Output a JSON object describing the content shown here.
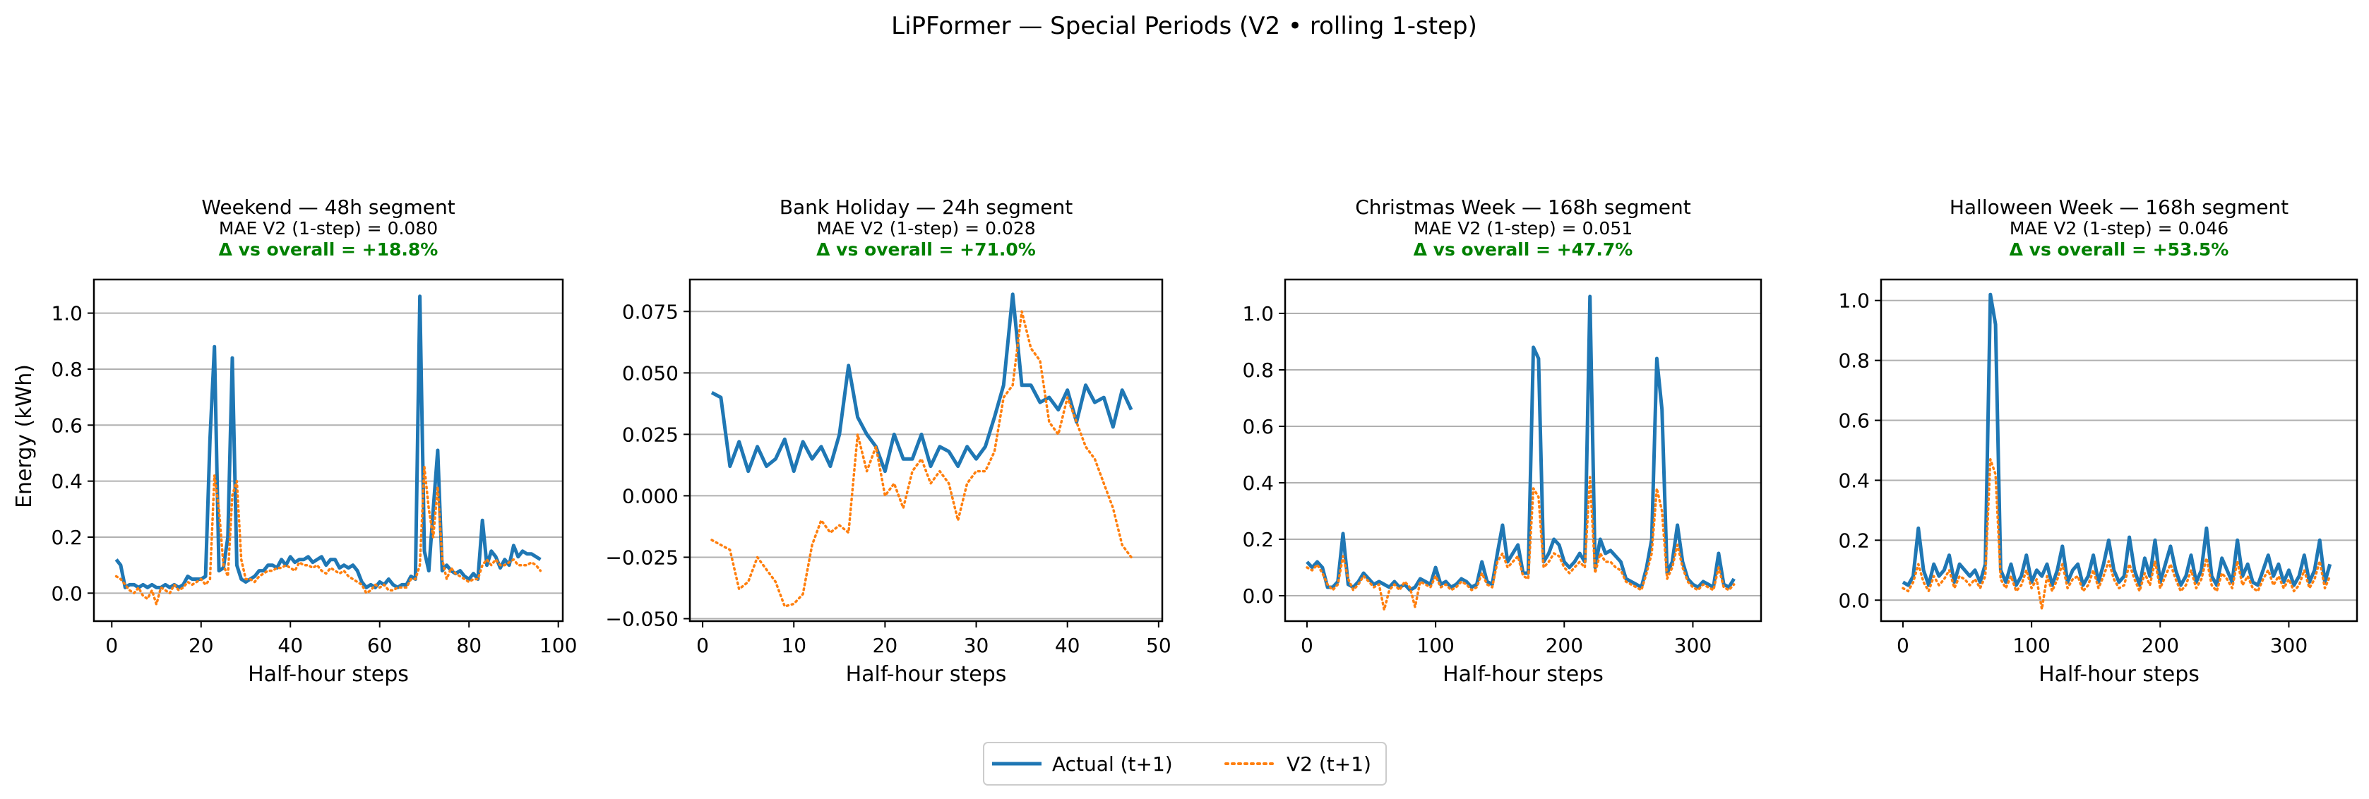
{
  "figure": {
    "suptitle": "LiPFormer — Special Periods (V2 • rolling 1-step)",
    "ylabel": "Energy (kWh)",
    "legend": [
      {
        "label": "Actual (t+1)",
        "color": "#1f77b4",
        "style": "solid"
      },
      {
        "label": "V2 (t+1)",
        "color": "#ff7f0e",
        "style": "dotted"
      }
    ],
    "delta_color": "#008000"
  },
  "chart_data": [
    {
      "type": "line",
      "title": "Weekend — 48h segment",
      "subtitle": "MAE V2 (1-step) = 0.080",
      "delta": "Δ vs overall = +18.8%",
      "xlabel": "Half-hour steps",
      "ylabel": "Energy (kWh)",
      "xlim": [
        -4,
        101
      ],
      "ylim": [
        -0.1,
        1.12
      ],
      "xticks": [
        0,
        20,
        40,
        60,
        80,
        100
      ],
      "yticks": [
        0.0,
        0.2,
        0.4,
        0.6,
        0.8,
        1.0
      ],
      "ytick_labels": [
        "0.0",
        "0.2",
        "0.4",
        "0.6",
        "0.8",
        "1.0"
      ],
      "grid": "y",
      "series": [
        {
          "name": "Actual (t+1)",
          "x_start": 1,
          "x_step": 1,
          "values": [
            0.12,
            0.1,
            0.02,
            0.03,
            0.03,
            0.02,
            0.03,
            0.02,
            0.03,
            0.02,
            0.02,
            0.03,
            0.02,
            0.03,
            0.02,
            0.03,
            0.06,
            0.05,
            0.05,
            0.05,
            0.06,
            0.55,
            0.88,
            0.08,
            0.09,
            0.2,
            0.84,
            0.1,
            0.05,
            0.04,
            0.05,
            0.06,
            0.08,
            0.08,
            0.1,
            0.1,
            0.09,
            0.12,
            0.1,
            0.13,
            0.11,
            0.12,
            0.12,
            0.13,
            0.11,
            0.12,
            0.13,
            0.1,
            0.12,
            0.12,
            0.09,
            0.1,
            0.09,
            0.1,
            0.08,
            0.04,
            0.02,
            0.03,
            0.02,
            0.04,
            0.03,
            0.05,
            0.03,
            0.02,
            0.03,
            0.03,
            0.06,
            0.05,
            1.06,
            0.15,
            0.08,
            0.3,
            0.51,
            0.08,
            0.1,
            0.08,
            0.07,
            0.08,
            0.06,
            0.05,
            0.07,
            0.05,
            0.26,
            0.1,
            0.15,
            0.13,
            0.09,
            0.12,
            0.1,
            0.17,
            0.13,
            0.15,
            0.14,
            0.14,
            0.13,
            0.12
          ],
          "color": "#1f77b4"
        },
        {
          "name": "V2 (t+1)",
          "x_start": 1,
          "x_step": 1,
          "values": [
            0.06,
            0.05,
            0.03,
            0.01,
            0.0,
            0.02,
            -0.01,
            -0.02,
            0.01,
            -0.04,
            0.02,
            0.01,
            0.0,
            0.03,
            0.01,
            0.02,
            0.04,
            0.03,
            0.04,
            0.05,
            0.03,
            0.05,
            0.42,
            0.3,
            0.1,
            0.06,
            0.35,
            0.4,
            0.12,
            0.05,
            0.05,
            0.04,
            0.06,
            0.07,
            0.08,
            0.08,
            0.09,
            0.09,
            0.1,
            0.09,
            0.08,
            0.11,
            0.1,
            0.1,
            0.09,
            0.1,
            0.08,
            0.07,
            0.09,
            0.08,
            0.07,
            0.08,
            0.06,
            0.05,
            0.04,
            0.03,
            0.0,
            0.01,
            0.03,
            0.02,
            0.03,
            0.01,
            0.01,
            0.02,
            0.02,
            0.02,
            0.05,
            0.05,
            0.1,
            0.45,
            0.3,
            0.2,
            0.38,
            0.12,
            0.05,
            0.09,
            0.07,
            0.06,
            0.05,
            0.04,
            0.05,
            0.05,
            0.1,
            0.12,
            0.1,
            0.12,
            0.1,
            0.1,
            0.11,
            0.12,
            0.1,
            0.1,
            0.1,
            0.11,
            0.1,
            0.08
          ],
          "color": "#ff7f0e"
        }
      ]
    },
    {
      "type": "line",
      "title": "Bank Holiday — 24h segment",
      "subtitle": "MAE V2 (1-step) = 0.028",
      "delta": "Δ vs overall = +71.0%",
      "xlabel": "Half-hour steps",
      "ylabel": "",
      "xlim": [
        -1.4,
        50.4
      ],
      "ylim": [
        -0.051,
        0.088
      ],
      "xticks": [
        0,
        10,
        20,
        30,
        40,
        50
      ],
      "yticks": [
        -0.05,
        -0.025,
        0.0,
        0.025,
        0.05,
        0.075
      ],
      "ytick_labels": [
        "−0.050",
        "−0.025",
        "0.000",
        "0.025",
        "0.050",
        "0.075"
      ],
      "grid": "y",
      "series": [
        {
          "name": "Actual (t+1)",
          "x_start": 1,
          "x_step": 1,
          "values": [
            0.042,
            0.04,
            0.012,
            0.022,
            0.01,
            0.02,
            0.012,
            0.015,
            0.023,
            0.01,
            0.022,
            0.015,
            0.02,
            0.012,
            0.025,
            0.053,
            0.032,
            0.025,
            0.02,
            0.01,
            0.025,
            0.015,
            0.015,
            0.025,
            0.012,
            0.02,
            0.018,
            0.012,
            0.02,
            0.015,
            0.02,
            0.032,
            0.045,
            0.082,
            0.045,
            0.045,
            0.038,
            0.04,
            0.035,
            0.043,
            0.03,
            0.045,
            0.038,
            0.04,
            0.028,
            0.043,
            0.035
          ],
          "color": "#1f77b4"
        },
        {
          "name": "V2 (t+1)",
          "x_start": 1,
          "x_step": 1,
          "values": [
            -0.018,
            -0.02,
            -0.022,
            -0.038,
            -0.035,
            -0.025,
            -0.03,
            -0.035,
            -0.045,
            -0.044,
            -0.04,
            -0.02,
            -0.01,
            -0.015,
            -0.012,
            -0.015,
            0.025,
            0.01,
            0.02,
            0.0,
            0.005,
            -0.005,
            0.01,
            0.015,
            0.005,
            0.01,
            0.005,
            -0.01,
            0.005,
            0.01,
            0.01,
            0.018,
            0.04,
            0.045,
            0.075,
            0.06,
            0.055,
            0.03,
            0.025,
            0.04,
            0.03,
            0.02,
            0.015,
            0.005,
            -0.005,
            -0.02,
            -0.025
          ],
          "color": "#ff7f0e"
        }
      ]
    },
    {
      "type": "line",
      "title": "Christmas Week — 168h segment",
      "subtitle": "MAE V2 (1-step) = 0.051",
      "delta": "Δ vs overall = +47.7%",
      "xlabel": "Half-hour steps",
      "ylabel": "",
      "xlim": [
        -17,
        353
      ],
      "ylim": [
        -0.09,
        1.12
      ],
      "xticks": [
        0,
        100,
        200,
        300
      ],
      "yticks": [
        0.0,
        0.2,
        0.4,
        0.6,
        0.8,
        1.0
      ],
      "ytick_labels": [
        "0.0",
        "0.2",
        "0.4",
        "0.6",
        "0.8",
        "1.0"
      ],
      "grid": "y",
      "series": [
        {
          "name": "Actual (t+1)",
          "x_start": 0,
          "x_step": 4,
          "values": [
            0.12,
            0.1,
            0.12,
            0.1,
            0.03,
            0.03,
            0.05,
            0.22,
            0.04,
            0.03,
            0.05,
            0.08,
            0.06,
            0.04,
            0.05,
            0.04,
            0.03,
            0.05,
            0.03,
            0.04,
            0.02,
            0.03,
            0.06,
            0.05,
            0.04,
            0.1,
            0.04,
            0.05,
            0.03,
            0.04,
            0.06,
            0.05,
            0.03,
            0.04,
            0.12,
            0.05,
            0.04,
            0.15,
            0.25,
            0.12,
            0.15,
            0.18,
            0.08,
            0.08,
            0.88,
            0.84,
            0.12,
            0.15,
            0.2,
            0.18,
            0.12,
            0.1,
            0.12,
            0.15,
            0.12,
            1.06,
            0.1,
            0.2,
            0.15,
            0.16,
            0.14,
            0.12,
            0.06,
            0.05,
            0.04,
            0.03,
            0.1,
            0.2,
            0.84,
            0.66,
            0.08,
            0.12,
            0.25,
            0.12,
            0.06,
            0.04,
            0.03,
            0.05,
            0.04,
            0.03,
            0.15,
            0.04,
            0.03,
            0.06
          ],
          "color": "#1f77b4"
        },
        {
          "name": "V2 (t+1)",
          "x_start": 0,
          "x_step": 4,
          "values": [
            0.1,
            0.09,
            0.11,
            0.08,
            0.04,
            0.02,
            0.04,
            0.14,
            0.06,
            0.02,
            0.04,
            0.07,
            0.05,
            0.03,
            0.04,
            -0.05,
            0.02,
            0.04,
            0.02,
            0.05,
            0.03,
            -0.04,
            0.05,
            0.04,
            0.03,
            0.07,
            0.03,
            0.04,
            0.02,
            0.03,
            0.05,
            0.04,
            0.02,
            0.03,
            0.08,
            0.04,
            0.03,
            0.12,
            0.15,
            0.1,
            0.12,
            0.14,
            0.07,
            0.06,
            0.38,
            0.35,
            0.1,
            0.12,
            0.15,
            0.14,
            0.1,
            0.08,
            0.1,
            0.12,
            0.1,
            0.42,
            0.08,
            0.15,
            0.12,
            0.12,
            0.1,
            0.09,
            0.05,
            0.04,
            0.03,
            0.02,
            0.08,
            0.15,
            0.38,
            0.3,
            0.06,
            0.1,
            0.18,
            0.1,
            0.05,
            0.03,
            0.02,
            0.04,
            0.03,
            0.02,
            0.1,
            0.03,
            0.02,
            0.04
          ],
          "color": "#ff7f0e"
        }
      ]
    },
    {
      "type": "line",
      "title": "Halloween Week — 168h segment",
      "subtitle": "MAE V2 (1-step) = 0.046",
      "delta": "Δ vs overall = +53.5%",
      "xlabel": "Half-hour steps",
      "ylabel": "",
      "xlim": [
        -17,
        353
      ],
      "ylim": [
        -0.07,
        1.07
      ],
      "xticks": [
        0,
        100,
        200,
        300
      ],
      "yticks": [
        0.0,
        0.2,
        0.4,
        0.6,
        0.8,
        1.0
      ],
      "ytick_labels": [
        "0.0",
        "0.2",
        "0.4",
        "0.6",
        "0.8",
        "1.0"
      ],
      "grid": "y",
      "series": [
        {
          "name": "Actual (t+1)",
          "x_start": 0,
          "x_step": 4,
          "values": [
            0.06,
            0.05,
            0.08,
            0.24,
            0.1,
            0.05,
            0.12,
            0.08,
            0.1,
            0.15,
            0.06,
            0.12,
            0.1,
            0.08,
            0.1,
            0.06,
            0.12,
            1.02,
            0.92,
            0.1,
            0.06,
            0.12,
            0.05,
            0.08,
            0.15,
            0.06,
            0.1,
            0.08,
            0.12,
            0.05,
            0.1,
            0.18,
            0.06,
            0.1,
            0.12,
            0.05,
            0.08,
            0.15,
            0.06,
            0.12,
            0.2,
            0.1,
            0.06,
            0.08,
            0.21,
            0.1,
            0.05,
            0.14,
            0.08,
            0.2,
            0.06,
            0.12,
            0.18,
            0.1,
            0.05,
            0.08,
            0.15,
            0.06,
            0.1,
            0.24,
            0.08,
            0.05,
            0.14,
            0.1,
            0.06,
            0.2,
            0.08,
            0.12,
            0.06,
            0.05,
            0.1,
            0.15,
            0.08,
            0.12,
            0.06,
            0.1,
            0.05,
            0.08,
            0.15,
            0.06,
            0.1,
            0.2,
            0.06,
            0.12
          ],
          "color": "#1f77b4"
        },
        {
          "name": "V2 (t+1)",
          "x_start": 0,
          "x_step": 4,
          "values": [
            0.04,
            0.03,
            0.06,
            0.12,
            0.06,
            0.03,
            0.08,
            0.05,
            0.07,
            0.1,
            0.04,
            0.08,
            0.07,
            0.05,
            0.07,
            0.04,
            0.08,
            0.47,
            0.42,
            0.07,
            0.04,
            0.08,
            0.03,
            0.05,
            0.1,
            0.04,
            0.07,
            -0.03,
            0.08,
            0.03,
            0.07,
            0.12,
            0.04,
            0.07,
            0.08,
            0.03,
            0.05,
            0.1,
            0.04,
            0.08,
            0.13,
            0.07,
            0.04,
            0.05,
            0.12,
            0.07,
            0.03,
            0.09,
            0.05,
            0.13,
            0.04,
            0.08,
            0.12,
            0.07,
            0.03,
            0.05,
            0.1,
            0.04,
            0.07,
            0.14,
            0.05,
            0.03,
            0.09,
            0.07,
            0.04,
            0.13,
            0.05,
            0.08,
            0.04,
            0.03,
            0.07,
            0.1,
            0.05,
            0.08,
            0.04,
            0.07,
            0.03,
            0.05,
            0.1,
            0.04,
            0.07,
            0.13,
            0.04,
            0.08
          ],
          "color": "#ff7f0e"
        }
      ]
    }
  ]
}
